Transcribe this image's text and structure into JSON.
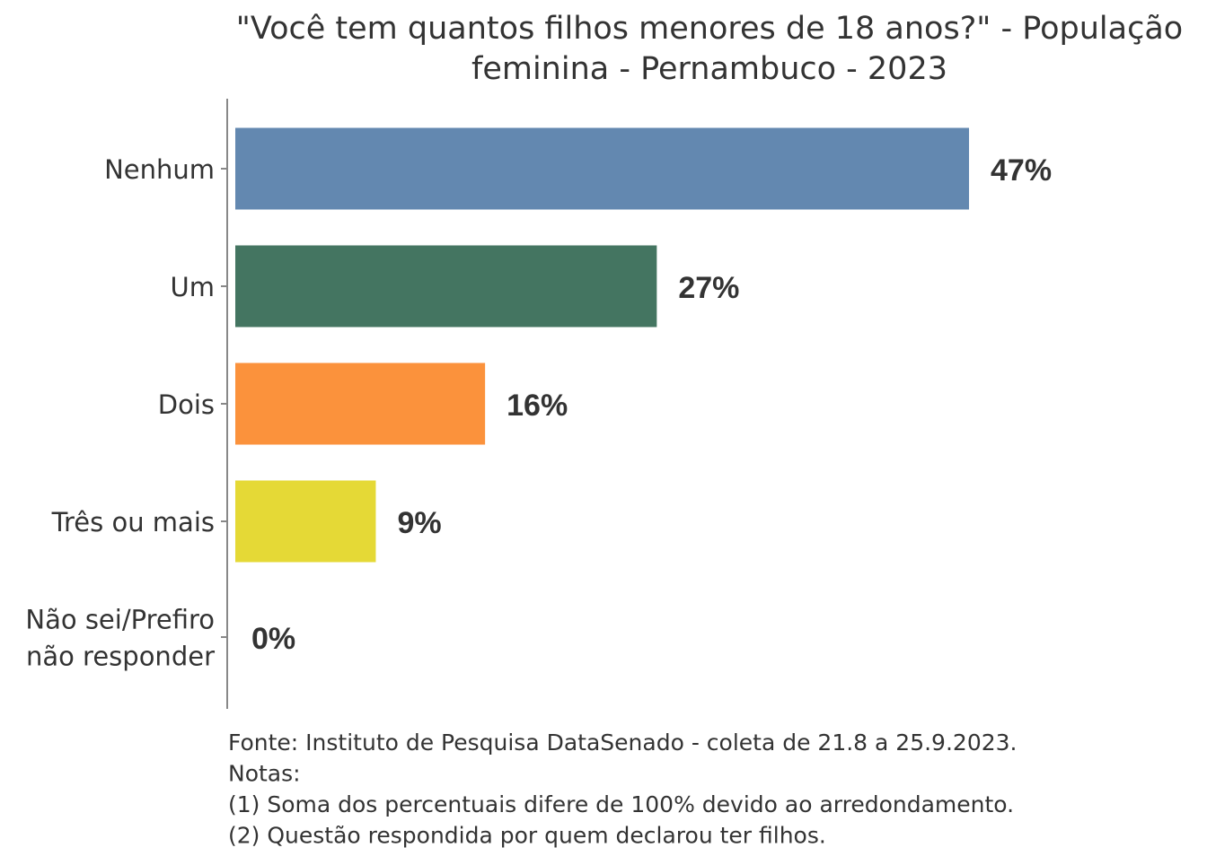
{
  "chart_data": {
    "type": "bar",
    "orientation": "horizontal",
    "title": [
      "\"Você tem quantos filhos menores de 18 anos?\" - População",
      "feminina - Pernambuco - 2023"
    ],
    "categories": [
      "Nenhum",
      "Um",
      "Dois",
      "Três ou mais",
      "Não sei/Prefiro não responder"
    ],
    "category_lines": [
      [
        "Nenhum"
      ],
      [
        "Um"
      ],
      [
        "Dois"
      ],
      [
        "Três ou mais"
      ],
      [
        "Não sei/Prefiro",
        "não responder"
      ]
    ],
    "values": [
      47,
      27,
      16,
      9,
      0
    ],
    "labels": [
      "47%",
      "27%",
      "16%",
      "9%",
      "0%"
    ],
    "colors": [
      "#6388b0",
      "#447561",
      "#fb923c",
      "#e5d936",
      "#999999"
    ],
    "xlim": [
      0,
      47
    ],
    "xlabel": "",
    "ylabel": "",
    "grid": false,
    "notes": [
      "Fonte: Instituto de Pesquisa DataSenado - coleta de 21.8 a 25.9.2023.",
      "Notas:",
      "(1) Soma dos percentuais difere de 100% devido ao arredondamento.",
      "(2) Questão respondida por quem declarou ter filhos."
    ]
  }
}
